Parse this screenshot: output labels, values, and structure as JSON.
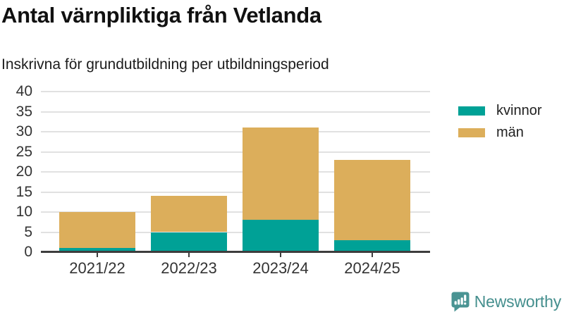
{
  "header": {
    "title": "Antal värnpliktiga från Vetlanda",
    "subtitle": "Inskrivna för grundutbildning per utbildningsperiod"
  },
  "chart_data": {
    "type": "bar",
    "stacked": true,
    "title": "Antal värnpliktiga från Vetlanda",
    "subtitle": "Inskrivna för grundutbildning per utbildningsperiod",
    "categories": [
      "2021/22",
      "2022/23",
      "2023/24",
      "2024/25"
    ],
    "series": [
      {
        "name": "kvinnor",
        "color": "#00a196",
        "values": [
          1,
          5,
          8,
          3
        ]
      },
      {
        "name": "män",
        "color": "#dcae5b",
        "values": [
          9,
          9,
          23,
          20
        ]
      }
    ],
    "totals": [
      10,
      14,
      31,
      23
    ],
    "xlabel": "",
    "ylabel": "",
    "ylim": [
      0,
      40
    ],
    "yticks": [
      0,
      5,
      10,
      15,
      20,
      25,
      30,
      35,
      40
    ],
    "grid": "horizontal",
    "legend_position": "right"
  },
  "footer": {
    "brand": "Newsworthy",
    "brand_color": "#458f8e"
  },
  "colors": {
    "kvinnor": "#00a196",
    "man": "#dcae5b",
    "gridline": "#e1e1e1",
    "axis": "#3d3d3d",
    "text": "#333333"
  }
}
